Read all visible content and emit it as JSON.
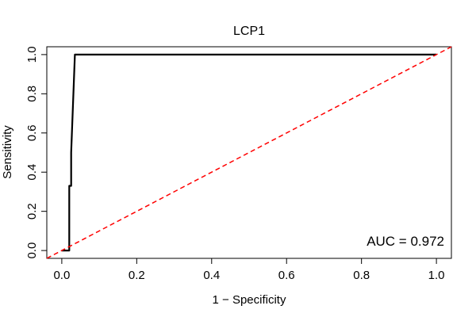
{
  "chart_data": {
    "type": "line",
    "title": "LCP1",
    "xlabel": "1 − Specificity",
    "ylabel": "Sensitivity",
    "xlim": [
      -0.04,
      1.04
    ],
    "ylim": [
      -0.04,
      1.04
    ],
    "xticks": [
      0.0,
      0.2,
      0.4,
      0.6,
      0.8,
      1.0
    ],
    "yticks": [
      0.0,
      0.2,
      0.4,
      0.6,
      0.8,
      1.0
    ],
    "xtick_labels": [
      "0.0",
      "0.2",
      "0.4",
      "0.6",
      "0.8",
      "1.0"
    ],
    "ytick_labels": [
      "0.0",
      "0.2",
      "0.4",
      "0.6",
      "0.8",
      "1.0"
    ],
    "grid": false,
    "series": [
      {
        "color": "#000000",
        "style": "solid",
        "x": [
          0.0,
          0.02,
          0.02,
          0.025,
          0.025,
          0.035,
          1.0
        ],
        "y": [
          0.0,
          0.0,
          0.33,
          0.33,
          0.5,
          1.0,
          1.0
        ]
      },
      {
        "color": "#ff0000",
        "style": "dashed",
        "x": [
          -0.04,
          1.04
        ],
        "y": [
          -0.04,
          1.04
        ]
      }
    ],
    "annotations": [
      {
        "text": "AUC = 0.972"
      }
    ]
  }
}
